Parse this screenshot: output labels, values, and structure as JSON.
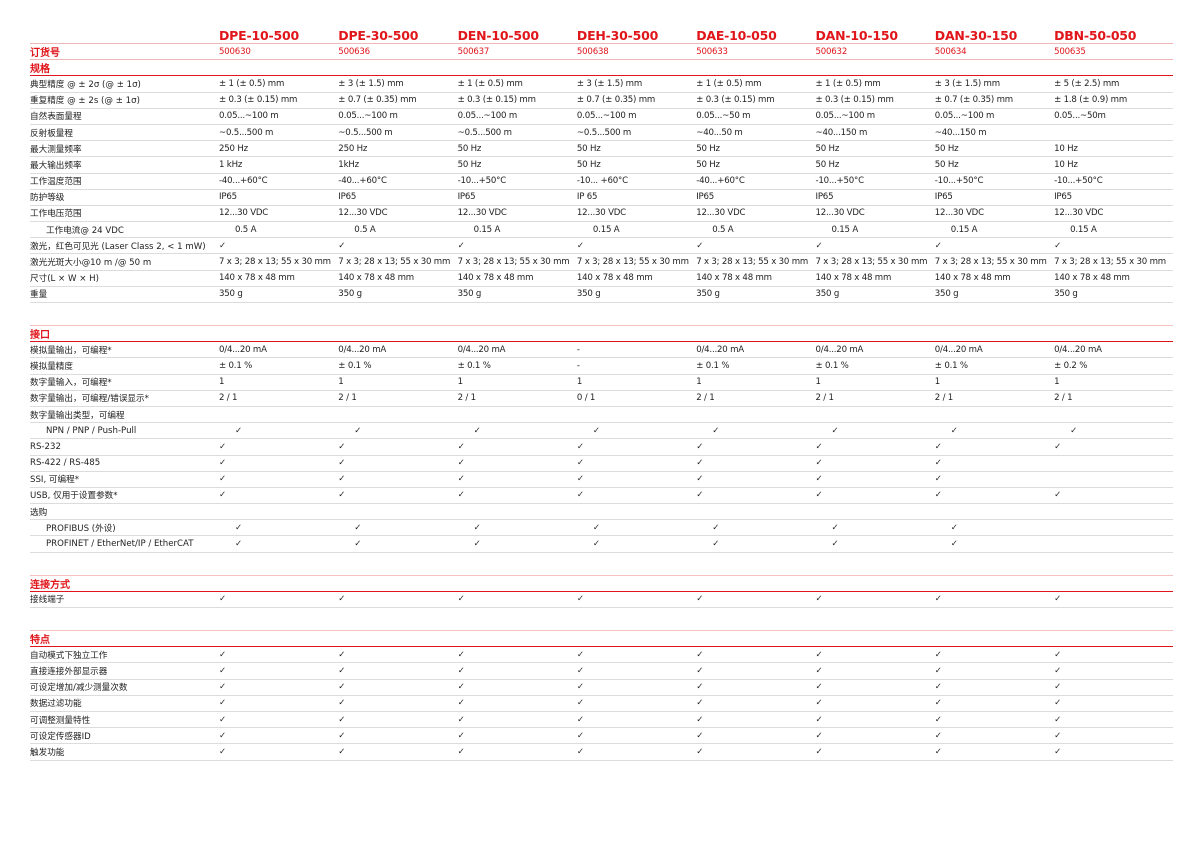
{
  "models": [
    "DPE-10-500",
    "DPE-30-500",
    "DEN-10-500",
    "DEH-30-500",
    "DAE-10-050",
    "DAN-10-150",
    "DAN-30-150",
    "DBN-50-050"
  ],
  "order": {
    "label": "订货号",
    "values": [
      "500630",
      "500636",
      "500637",
      "500638",
      "500633",
      "500632",
      "500634",
      "500635"
    ]
  },
  "sections": [
    {
      "title": "规格",
      "gap": false,
      "rows": [
        {
          "label": "典型精度 @ ± 2σ (@ ± 1σ)",
          "values": [
            "± 1 (± 0.5) mm",
            "± 3 (± 1.5) mm",
            "± 1 (± 0.5) mm",
            "± 3 (± 1.5) mm",
            "± 1 (± 0.5) mm",
            "± 1 (± 0.5) mm",
            "± 3 (± 1.5) mm",
            "± 5 (± 2.5) mm"
          ]
        },
        {
          "label": "重复精度 @ ± 2s (@ ± 1σ)",
          "values": [
            "± 0.3 (± 0.15) mm",
            "± 0.7 (± 0.35) mm",
            "± 0.3 (± 0.15) mm",
            "± 0.7 (± 0.35) mm",
            "± 0.3 (± 0.15) mm",
            "± 0.3 (± 0.15) mm",
            "± 0.7 (± 0.35) mm",
            "± 1.8 (± 0.9) mm"
          ]
        },
        {
          "label": "自然表面量程",
          "values": [
            "0.05...~100 m",
            "0.05...~100 m",
            "0.05...~100 m",
            "0.05...~100 m",
            "0.05...~50 m",
            "0.05...~100 m",
            "0.05...~100 m",
            "0.05...~50m"
          ]
        },
        {
          "label": "反射板量程",
          "values": [
            " ~0.5...500 m",
            " ~0.5...500 m",
            " ~0.5...500 m",
            " ~0.5...500 m",
            "~40...50 m",
            "~40...150 m",
            "~40...150 m",
            ""
          ]
        },
        {
          "label": "最大测量频率",
          "values": [
            "250 Hz",
            "250 Hz",
            "50 Hz",
            "50 Hz",
            "50 Hz",
            "50 Hz",
            "50 Hz",
            "10 Hz"
          ]
        },
        {
          "label": "最大输出频率",
          "values": [
            "1 kHz",
            "1kHz",
            "50 Hz",
            "50 Hz",
            "50 Hz",
            "50 Hz",
            "50 Hz",
            "10 Hz"
          ]
        },
        {
          "label": "工作温度范围",
          "values": [
            "-40...+60°C",
            "-40...+60°C",
            "-10...+50°C",
            "-10... +60°C",
            "-40...+60°C",
            "-10...+50°C",
            "-10...+50°C",
            "-10...+50°C"
          ]
        },
        {
          "label": "防护等级",
          "values": [
            "IP65",
            "IP65",
            "IP65",
            "IP 65",
            "IP65",
            "IP65",
            "IP65",
            "IP65"
          ]
        },
        {
          "label": "工作电压范围",
          "values": [
            "12...30 VDC",
            "12...30 VDC",
            "12...30 VDC",
            "12...30 VDC",
            "12...30 VDC",
            "12...30 VDC",
            "12...30 VDC",
            "12...30 VDC"
          ]
        },
        {
          "label": "工作电流@ 24 VDC",
          "indent": true,
          "values": [
            "0.5 A",
            "0.5 A",
            "0.15 A",
            "0.15 A",
            "0.5 A",
            "0.15 A",
            "0.15 A",
            "0.15 A"
          ]
        },
        {
          "label": "激光，红色可见光 (Laser Class 2, < 1 mW)",
          "values": [
            "✓",
            "✓",
            "✓",
            "✓",
            "✓",
            "✓",
            "✓",
            "✓"
          ]
        },
        {
          "label": "激光光斑大小@10 m /@ 50 m",
          "values": [
            "7 x 3; 28 x 13; 55 x 30 mm",
            "7 x 3; 28 x 13; 55 x 30 mm",
            "7 x 3; 28 x 13; 55 x 30 mm",
            "7 x 3; 28 x 13; 55 x 30 mm",
            "7 x 3; 28 x 13; 55 x 30 mm",
            "7 x 3; 28 x 13; 55 x 30 mm",
            "7 x 3; 28 x 13; 55 x 30 mm",
            "7 x 3; 28 x 13; 55 x 30 mm"
          ]
        },
        {
          "label": "尺寸(L × W × H)",
          "values": [
            "140 x 78 x 48 mm",
            "140 x 78 x 48 mm",
            "140 x 78 x 48 mm",
            "140 x 78 x 48 mm",
            "140 x 78 x 48 mm",
            "140 x 78 x 48 mm",
            "140 x 78 x 48 mm",
            "140 x 78 x 48 mm"
          ]
        },
        {
          "label": "重量",
          "values": [
            "350 g",
            "350 g",
            "350 g",
            "350 g",
            "350 g",
            "350 g",
            "350 g",
            "350 g"
          ]
        }
      ]
    },
    {
      "title": "接口",
      "gap": true,
      "rows": [
        {
          "label": "模拟量输出，可编程*",
          "values": [
            "0/4...20 mA",
            "0/4...20 mA",
            "0/4...20 mA",
            "-",
            "0/4...20 mA",
            "0/4...20 mA",
            "0/4...20 mA",
            "0/4...20 mA"
          ]
        },
        {
          "label": "模拟量精度",
          "values": [
            "± 0.1 %",
            "± 0.1 %",
            "± 0.1 %",
            "-",
            "± 0.1 %",
            "± 0.1 %",
            "± 0.1 %",
            "± 0.2 %"
          ]
        },
        {
          "label": "数字量输入，可编程*",
          "values": [
            "1",
            "1",
            "1",
            "1",
            "1",
            "1",
            "1",
            "1"
          ]
        },
        {
          "label": "数字量输出，可编程/错误显示*",
          "values": [
            "2 / 1",
            "2 / 1",
            "2 / 1",
            "0 / 1",
            "2 / 1",
            "2 / 1",
            "2 / 1",
            "2 / 1"
          ]
        },
        {
          "label": "数字量输出类型，可编程",
          "values": [
            "",
            "",
            "",
            "",
            "",
            "",
            "",
            ""
          ]
        },
        {
          "label": "NPN / PNP / Push-Pull",
          "indent": true,
          "values": [
            "✓",
            "✓",
            "✓",
            "✓",
            "✓",
            "✓",
            "✓",
            "✓"
          ]
        },
        {
          "label": "RS-232",
          "values": [
            "✓",
            "✓",
            "✓",
            "✓",
            "✓",
            "✓",
            "✓",
            "✓"
          ]
        },
        {
          "label": "RS-422 / RS-485",
          "values": [
            "✓",
            "✓",
            "✓",
            "✓",
            "✓",
            "✓",
            "✓",
            ""
          ]
        },
        {
          "label": "SSI, 可编程*",
          "values": [
            "✓",
            "✓",
            "✓",
            "✓",
            "✓",
            "✓",
            "✓",
            ""
          ]
        },
        {
          "label": "USB, 仅用于设置参数*",
          "values": [
            "✓",
            "✓",
            "✓",
            "✓",
            "✓",
            "✓",
            "✓",
            "✓"
          ]
        },
        {
          "label": "选购",
          "values": [
            "",
            "",
            "",
            "",
            "",
            "",
            "",
            ""
          ]
        },
        {
          "label": "PROFIBUS (外设)",
          "indent": true,
          "values": [
            "✓",
            "✓",
            "✓",
            "✓",
            "✓",
            "✓",
            "✓",
            ""
          ]
        },
        {
          "label": "PROFINET / EtherNet/IP / EtherCAT",
          "indent": true,
          "values": [
            "✓",
            "✓",
            "✓",
            "✓",
            "✓",
            "✓",
            "✓",
            ""
          ]
        }
      ]
    },
    {
      "title": "连接方式",
      "gap": true,
      "rows": [
        {
          "label": "接线端子",
          "values": [
            "✓",
            "✓",
            "✓",
            "✓",
            "✓",
            "✓",
            "✓",
            "✓"
          ]
        }
      ]
    },
    {
      "title": "特点",
      "gap": true,
      "rows": [
        {
          "label": "自动模式下独立工作",
          "values": [
            "✓",
            "✓",
            "✓",
            "✓",
            "✓",
            "✓",
            "✓",
            "✓"
          ]
        },
        {
          "label": "直接连接外部显示器",
          "values": [
            "✓",
            "✓",
            "✓",
            "✓",
            "✓",
            "✓",
            "✓",
            "✓"
          ]
        },
        {
          "label": "可设定增加/减少测量次数",
          "values": [
            "✓",
            "✓",
            "✓",
            "✓",
            "✓",
            "✓",
            "✓",
            "✓"
          ]
        },
        {
          "label": "数据过滤功能",
          "values": [
            "✓",
            "✓",
            "✓",
            "✓",
            "✓",
            "✓",
            "✓",
            "✓"
          ]
        },
        {
          "label": "可调整测量特性",
          "values": [
            "✓",
            "✓",
            "✓",
            "✓",
            "✓",
            "✓",
            "✓",
            "✓"
          ]
        },
        {
          "label": "可设定传感器ID",
          "values": [
            "✓",
            "✓",
            "✓",
            "✓",
            "✓",
            "✓",
            "✓",
            "✓"
          ]
        },
        {
          "label": "触发功能",
          "values": [
            "✓",
            "✓",
            "✓",
            "✓",
            "✓",
            "✓",
            "✓",
            "✓"
          ]
        }
      ]
    }
  ]
}
